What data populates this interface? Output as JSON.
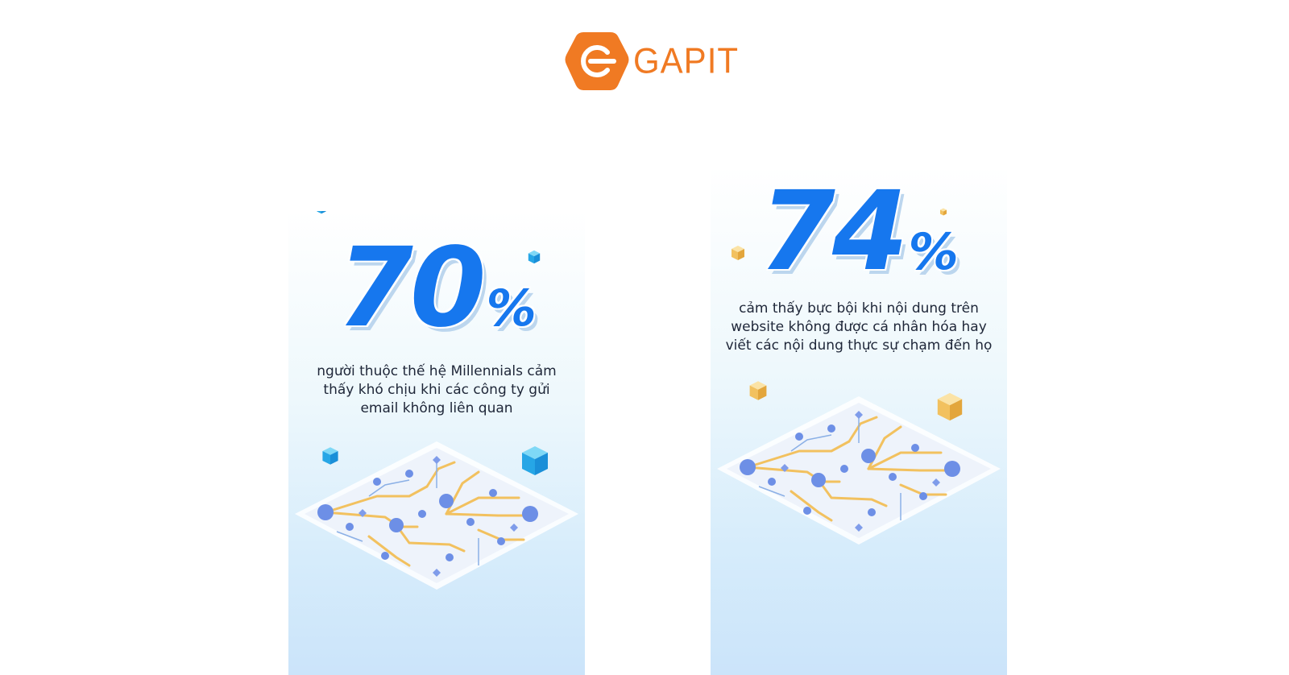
{
  "brand": {
    "name": "GAPIT",
    "color": "#f07a23"
  },
  "cards": [
    {
      "value": "70",
      "unit": "%",
      "caption_lines": [
        "người thuộc thế hệ Millennials cảm",
        "thấy khó chịu khi các công ty gửi",
        "email không liên quan"
      ],
      "accent_color": "#1677ee",
      "cube_color": "#36b3ef",
      "illustration": "circuit-board-icon"
    },
    {
      "value": "74",
      "unit": "%",
      "caption_lines": [
        "cảm thấy bực bội khi nội dung trên",
        "website không được cá nhân hóa hay",
        "viết các nội dung thực sự chạm đến họ"
      ],
      "accent_color": "#1677ee",
      "cube_color": "#f2c15f",
      "illustration": "circuit-board-icon"
    }
  ]
}
